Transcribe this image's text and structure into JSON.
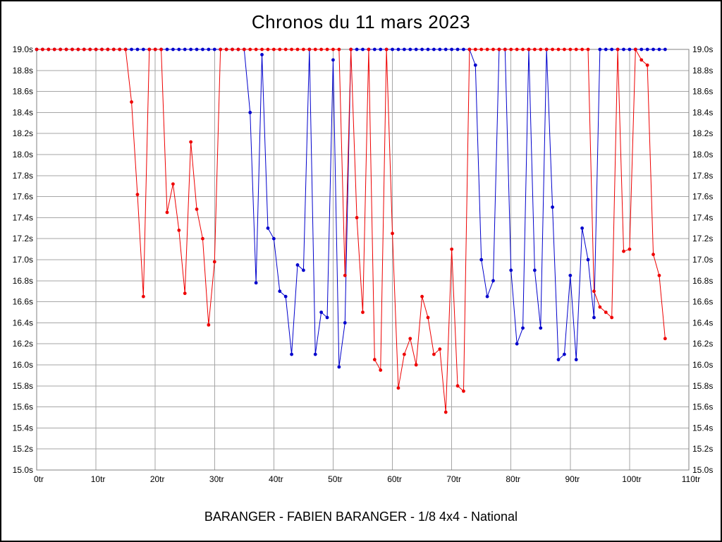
{
  "title": "Chronos du 11 mars 2023",
  "subtitle": "BARANGER - FABIEN BARANGER - 1/8 4x4 - National",
  "chart_data": {
    "type": "line",
    "title": "Chronos du 11 mars 2023",
    "xlabel": "",
    "ylabel": "",
    "xlim": [
      0,
      110
    ],
    "ylim": [
      15.0,
      19.0
    ],
    "grid": true,
    "grid_color": "#a6a6a6",
    "frame_color": "#808080",
    "x_unit": "tr",
    "y_unit": "s",
    "x_tick_values": [
      0,
      10,
      20,
      30,
      40,
      50,
      60,
      70,
      80,
      90,
      100,
      110
    ],
    "x_tick_labels": [
      "0tr",
      "10tr",
      "20tr",
      "30tr",
      "40tr",
      "50tr",
      "60tr",
      "70tr",
      "80tr",
      "90tr",
      "100tr",
      "110tr"
    ],
    "y_tick_values": [
      19.0,
      18.8,
      18.6,
      18.4,
      18.2,
      18.0,
      17.8,
      17.6,
      17.4,
      17.2,
      17.0,
      16.8,
      16.6,
      16.4,
      16.2,
      16.0,
      15.8,
      15.6,
      15.4,
      15.2,
      15.0
    ],
    "y_tick_labels": [
      "19.0s",
      "18.8s",
      "18.6s",
      "18.4s",
      "18.2s",
      "18.0s",
      "17.8s",
      "17.6s",
      "17.4s",
      "17.2s",
      "17.0s",
      "16.8s",
      "16.6s",
      "16.4s",
      "16.2s",
      "16.0s",
      "15.8s",
      "15.6s",
      "15.4s",
      "15.2s",
      "15.0s"
    ],
    "series": [
      {
        "name": "blue-run",
        "color": "#0000cc",
        "x_start": 0,
        "values": [
          19.0,
          19.0,
          19.0,
          19.0,
          19.0,
          19.0,
          19.0,
          19.0,
          19.0,
          19.0,
          19.0,
          19.0,
          19.0,
          19.0,
          19.0,
          19.0,
          19.0,
          19.0,
          19.0,
          19.0,
          19.0,
          19.0,
          19.0,
          19.0,
          19.0,
          19.0,
          19.0,
          19.0,
          19.0,
          19.0,
          19.0,
          19.0,
          19.0,
          19.0,
          19.0,
          19.0,
          18.4,
          16.78,
          18.95,
          17.3,
          17.2,
          16.7,
          16.65,
          16.1,
          16.95,
          16.9,
          19.0,
          16.1,
          16.5,
          16.45,
          18.9,
          15.98,
          16.4,
          19.0,
          19.0,
          19.0,
          19.0,
          19.0,
          19.0,
          19.0,
          19.0,
          19.0,
          19.0,
          19.0,
          19.0,
          19.0,
          19.0,
          19.0,
          19.0,
          19.0,
          19.0,
          19.0,
          19.0,
          19.0,
          18.85,
          17.0,
          16.65,
          16.8,
          19.0,
          19.0,
          16.9,
          16.2,
          16.35,
          19.0,
          16.9,
          16.35,
          19.0,
          17.5,
          16.05,
          16.1,
          16.85,
          16.05,
          17.3,
          17.0,
          16.45,
          19.0,
          19.0,
          19.0,
          19.0,
          19.0,
          19.0,
          19.0,
          19.0,
          19.0,
          19.0,
          19.0,
          19.0
        ]
      },
      {
        "name": "red-run",
        "color": "#ee0000",
        "x_start": 0,
        "values": [
          19.0,
          19.0,
          19.0,
          19.0,
          19.0,
          19.0,
          19.0,
          19.0,
          19.0,
          19.0,
          19.0,
          19.0,
          19.0,
          19.0,
          19.0,
          19.0,
          18.5,
          17.62,
          16.65,
          19.0,
          19.0,
          19.0,
          17.45,
          17.72,
          17.28,
          16.68,
          18.12,
          17.48,
          17.2,
          16.38,
          16.98,
          19.0,
          19.0,
          19.0,
          19.0,
          19.0,
          19.0,
          19.0,
          19.0,
          19.0,
          19.0,
          19.0,
          19.0,
          19.0,
          19.0,
          19.0,
          19.0,
          19.0,
          19.0,
          19.0,
          19.0,
          19.0,
          16.85,
          19.0,
          17.4,
          16.5,
          19.0,
          16.05,
          15.95,
          19.0,
          17.25,
          15.78,
          16.1,
          16.25,
          16.0,
          16.65,
          16.45,
          16.1,
          16.15,
          15.55,
          17.1,
          15.8,
          15.75,
          19.0,
          19.0,
          19.0,
          19.0,
          19.0,
          19.0,
          19.0,
          19.0,
          19.0,
          19.0,
          19.0,
          19.0,
          19.0,
          19.0,
          19.0,
          19.0,
          19.0,
          19.0,
          19.0,
          19.0,
          19.0,
          16.7,
          16.55,
          16.5,
          16.45,
          19.0,
          17.08,
          17.1,
          19.0,
          18.9,
          18.85,
          17.05,
          16.85,
          16.25
        ]
      }
    ]
  }
}
